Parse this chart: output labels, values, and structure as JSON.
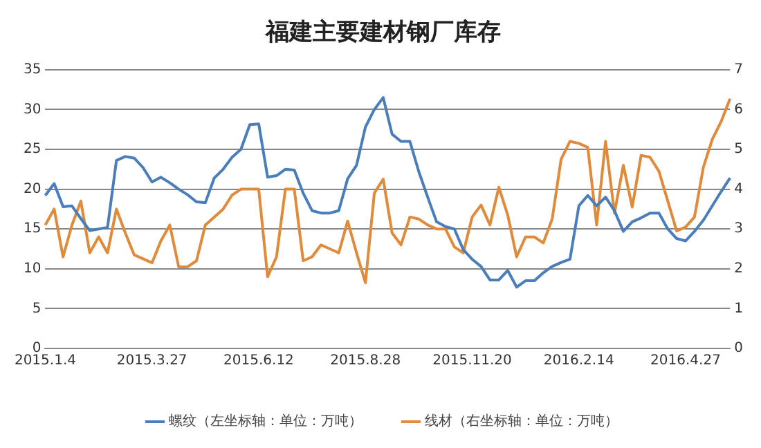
{
  "chart_data": {
    "type": "line",
    "title": "福建主要建材钢厂库存",
    "categories": [
      "2015.1.4",
      null,
      null,
      null,
      null,
      null,
      null,
      null,
      null,
      null,
      null,
      null,
      "2015.3.27",
      null,
      null,
      null,
      null,
      null,
      null,
      null,
      null,
      null,
      null,
      null,
      "2015.6.12",
      null,
      null,
      null,
      null,
      null,
      null,
      null,
      null,
      null,
      null,
      null,
      "2015.8.28",
      null,
      null,
      null,
      null,
      null,
      null,
      null,
      null,
      null,
      null,
      null,
      "2015.11.20",
      null,
      null,
      null,
      null,
      null,
      null,
      null,
      null,
      null,
      null,
      null,
      "2016.2.14",
      null,
      null,
      null,
      null,
      null,
      null,
      null,
      null,
      null,
      null,
      null,
      "2016.4.27",
      null,
      null,
      null,
      null,
      null
    ],
    "series": [
      {
        "name": "螺纹（左坐标轴：单位：万吨）",
        "color": "#4a7ebb",
        "values": [
          19.2,
          20.7,
          17.8,
          17.9,
          16.3,
          14.8,
          15.0,
          15.2,
          23.6,
          24.1,
          23.9,
          22.7,
          20.9,
          21.5,
          20.8,
          20.0,
          19.3,
          18.4,
          18.3,
          21.4,
          22.5,
          24.0,
          25.0,
          28.1,
          28.2,
          21.5,
          21.7,
          22.5,
          22.4,
          19.5,
          17.3,
          17.0,
          17.0,
          17.3,
          21.3,
          23.0,
          27.8,
          30.0,
          31.5,
          26.9,
          26.0,
          26.0,
          22.2,
          19.0,
          15.9,
          15.3,
          15.0,
          12.4,
          11.2,
          10.3,
          8.6,
          8.6,
          9.8,
          7.7,
          8.5,
          8.5,
          9.5,
          10.3,
          10.8,
          11.2,
          17.9,
          19.2,
          17.9,
          19.0,
          17.3,
          14.7,
          15.9,
          16.4,
          17.0,
          17.0,
          15.0,
          13.8,
          13.5,
          14.7,
          16.1,
          17.9,
          19.7,
          21.4
        ]
      },
      {
        "name": "线材（右坐标轴：单位：万吨）",
        "color": "#e08a3c",
        "axis": "y2",
        "values": [
          3.1,
          3.5,
          2.3,
          3.1,
          3.7,
          2.4,
          2.8,
          2.4,
          3.5,
          2.9,
          2.35,
          2.25,
          2.15,
          2.7,
          3.1,
          2.05,
          2.05,
          2.2,
          3.1,
          3.3,
          3.5,
          3.85,
          4.0,
          4.0,
          4.0,
          1.8,
          2.3,
          4.0,
          4.0,
          2.2,
          2.3,
          2.6,
          2.5,
          2.4,
          3.2,
          2.4,
          1.65,
          3.9,
          4.25,
          2.9,
          2.6,
          3.3,
          3.25,
          3.1,
          3.0,
          3.0,
          2.55,
          2.4,
          3.3,
          3.6,
          3.1,
          4.05,
          3.35,
          2.3,
          2.8,
          2.8,
          2.65,
          3.25,
          4.75,
          5.2,
          5.15,
          5.05,
          3.1,
          5.2,
          3.4,
          4.6,
          3.55,
          4.85,
          4.8,
          4.45,
          3.7,
          2.95,
          3.05,
          3.3,
          4.55,
          5.25,
          5.7,
          6.27
        ]
      }
    ],
    "ylim": [
      0,
      35
    ],
    "yticks": [
      0,
      5,
      10,
      15,
      20,
      25,
      30,
      35
    ],
    "y2lim": [
      0,
      7
    ],
    "y2ticks": [
      0,
      1,
      2,
      3,
      4,
      5,
      6,
      7
    ],
    "grid": "y",
    "legend": "bottom",
    "marker": "none",
    "line_style": "solid"
  }
}
